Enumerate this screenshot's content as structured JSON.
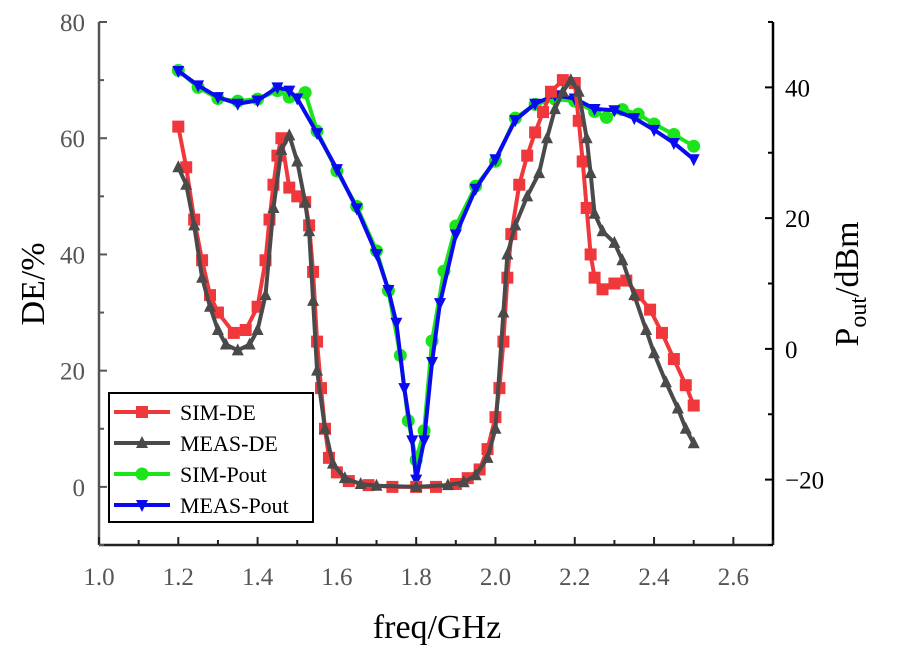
{
  "chart_data": {
    "type": "line",
    "title": "",
    "xlabel": "freq/GHz",
    "ylabel": "DE/%",
    "y2label": {
      "main": "P",
      "sub": "out",
      "rest": "/dBm"
    },
    "xlim": [
      1.0,
      2.7
    ],
    "ylim": [
      -10,
      80
    ],
    "y2lim": [
      -30,
      50
    ],
    "xticks": [
      "1.0",
      "1.2",
      "1.4",
      "1.6",
      "1.8",
      "2.0",
      "2.2",
      "2.4",
      "2.6"
    ],
    "yticks": [
      "0",
      "20",
      "40",
      "60",
      "80"
    ],
    "y2ticks": [
      "−20",
      "0",
      "20",
      "40"
    ],
    "legend_position": "bottom-left",
    "grid": false,
    "series": [
      {
        "name": "SIM-DE",
        "axis": "left",
        "color": "#f0383c",
        "marker": "square",
        "x": [
          1.2,
          1.22,
          1.24,
          1.26,
          1.28,
          1.3,
          1.34,
          1.37,
          1.4,
          1.42,
          1.43,
          1.44,
          1.45,
          1.46,
          1.48,
          1.5,
          1.52,
          1.53,
          1.54,
          1.55,
          1.56,
          1.57,
          1.58,
          1.6,
          1.63,
          1.68,
          1.74,
          1.8,
          1.85,
          1.9,
          1.93,
          1.96,
          1.98,
          2.0,
          2.01,
          2.02,
          2.03,
          2.04,
          2.06,
          2.08,
          2.1,
          2.12,
          2.14,
          2.17,
          2.2,
          2.21,
          2.22,
          2.23,
          2.24,
          2.25,
          2.27,
          2.3,
          2.33,
          2.36,
          2.39,
          2.42,
          2.45,
          2.48,
          2.5
        ],
        "y": [
          62,
          55,
          46,
          39,
          33,
          30,
          26.5,
          27,
          31,
          39,
          46,
          52,
          57,
          60,
          51.5,
          50,
          49,
          45,
          37,
          25,
          17,
          10,
          5,
          2.5,
          1,
          0.3,
          0,
          0,
          0,
          0.5,
          1.5,
          3,
          6.5,
          12,
          17,
          25,
          36,
          43.5,
          52,
          57,
          61,
          64.5,
          68,
          70,
          69.5,
          63,
          56,
          48,
          40,
          36,
          34,
          35,
          35.5,
          33,
          30.5,
          26.5,
          22,
          17.5,
          14
        ]
      },
      {
        "name": "MEAS-DE",
        "axis": "left",
        "color": "#4a4a4a",
        "marker": "triangle-up",
        "x": [
          1.2,
          1.22,
          1.24,
          1.26,
          1.28,
          1.3,
          1.32,
          1.35,
          1.38,
          1.4,
          1.42,
          1.44,
          1.46,
          1.48,
          1.5,
          1.52,
          1.53,
          1.54,
          1.55,
          1.57,
          1.59,
          1.62,
          1.66,
          1.7,
          1.8,
          1.88,
          1.92,
          1.95,
          1.98,
          2.0,
          2.02,
          2.03,
          2.05,
          2.08,
          2.11,
          2.13,
          2.15,
          2.17,
          2.19,
          2.21,
          2.23,
          2.24,
          2.25,
          2.27,
          2.3,
          2.32,
          2.35,
          2.38,
          2.4,
          2.43,
          2.46,
          2.48,
          2.5
        ],
        "y": [
          55,
          52,
          45,
          36,
          31,
          27,
          24.5,
          23.5,
          24.5,
          27,
          33,
          48,
          58,
          60.5,
          56,
          49,
          44,
          32,
          20,
          10,
          4,
          1.5,
          0.5,
          0.2,
          0,
          0.3,
          0.8,
          2,
          5,
          10,
          30,
          40,
          45,
          50,
          54,
          60,
          65,
          68,
          70,
          68,
          60,
          54,
          47,
          44,
          42,
          39,
          33,
          27,
          23,
          18,
          13.5,
          10,
          7.5
        ]
      },
      {
        "name": "SIM-Pout",
        "axis": "right",
        "color": "#1be41b",
        "marker": "circle",
        "x": [
          1.2,
          1.25,
          1.3,
          1.35,
          1.4,
          1.45,
          1.48,
          1.52,
          1.55,
          1.6,
          1.65,
          1.7,
          1.73,
          1.76,
          1.78,
          1.8,
          1.82,
          1.84,
          1.87,
          1.9,
          1.95,
          2.0,
          2.05,
          2.1,
          2.15,
          2.2,
          2.25,
          2.28,
          2.32,
          2.36,
          2.4,
          2.45,
          2.5
        ],
        "y": [
          42.6,
          40,
          38.3,
          37.9,
          38.2,
          39.5,
          38.5,
          39.2,
          33.3,
          27.2,
          21.8,
          15,
          8.9,
          -1,
          -11,
          -17,
          -12.5,
          1.2,
          11.9,
          18.8,
          24.9,
          28.7,
          35.3,
          37.4,
          38.2,
          37.9,
          36.3,
          35.4,
          36.6,
          35.9,
          34.4,
          32.8,
          31
        ]
      },
      {
        "name": "MEAS-Pout",
        "axis": "right",
        "color": "#0a0af0",
        "marker": "triangle-down",
        "x": [
          1.2,
          1.25,
          1.3,
          1.35,
          1.4,
          1.45,
          1.48,
          1.5,
          1.55,
          1.6,
          1.65,
          1.7,
          1.73,
          1.75,
          1.77,
          1.79,
          1.8,
          1.82,
          1.84,
          1.86,
          1.9,
          1.95,
          2.0,
          2.05,
          2.1,
          2.15,
          2.2,
          2.25,
          2.3,
          2.35,
          2.4,
          2.45,
          2.5
        ],
        "y": [
          42.5,
          40.3,
          38.5,
          37.5,
          38,
          40,
          39.5,
          38.3,
          33,
          27.5,
          21.5,
          14.5,
          9,
          4,
          -6,
          -14,
          -20,
          -14,
          -2,
          7,
          17.5,
          24.5,
          29,
          35,
          37.5,
          38.8,
          38.3,
          36.7,
          36.5,
          35.3,
          33.5,
          31.5,
          29
        ]
      }
    ]
  }
}
